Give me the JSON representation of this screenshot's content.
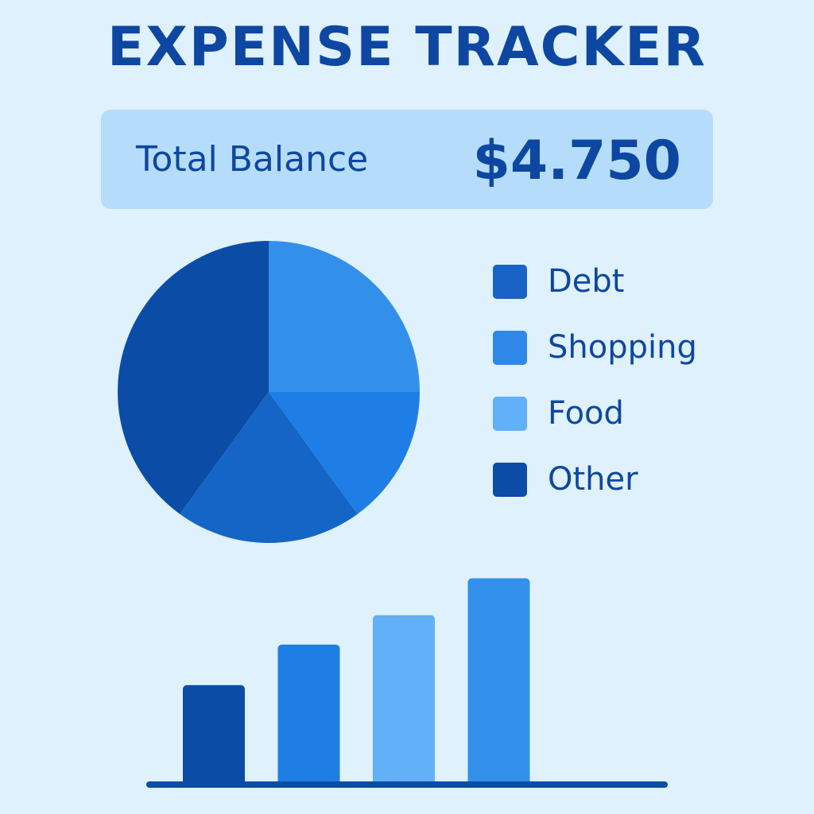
{
  "header": {
    "title": "EXPENSE TRACKER"
  },
  "balance": {
    "label": "Total Balance",
    "value": "$4.750"
  },
  "chart_data": [
    {
      "type": "pie",
      "slices": [
        {
          "label": "Shopping",
          "value": 25,
          "color": "#3390ea"
        },
        {
          "label": "Food",
          "value": 15,
          "color": "#1e7ee6"
        },
        {
          "label": "Debt",
          "value": 20,
          "color": "#1565c7"
        },
        {
          "label": "Other",
          "value": 40,
          "color": "#0b4da6"
        }
      ],
      "legend": [
        {
          "label": "Debt",
          "color": "#1a63c6"
        },
        {
          "label": "Shopping",
          "color": "#2f88e8"
        },
        {
          "label": "Food",
          "color": "#62b0f7"
        },
        {
          "label": "Other",
          "color": "#0b4da6"
        }
      ],
      "legend_position": "right"
    },
    {
      "type": "bar",
      "values": [
        27,
        38,
        46,
        56
      ],
      "colors": [
        "#0b4da6",
        "#1e7ee6",
        "#62b0f7",
        "#3390ea"
      ],
      "ylim": [
        0,
        60
      ],
      "axis_color": "#0b4da6",
      "grid": false
    }
  ]
}
